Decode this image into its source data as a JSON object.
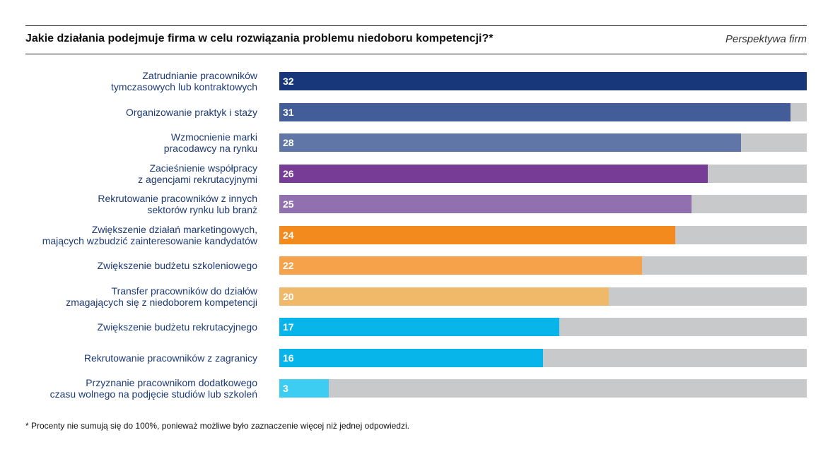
{
  "header": {
    "title": "Jakie działania podejmuje firma w celu rozwiązania problemu niedoboru kompetencji?*",
    "perspective": "Perspektywa firm"
  },
  "footnote": "* Procenty nie sumują się do 100%, ponieważ możliwe było zaznaczenie więcej niż jednej odpowiedzi.",
  "chart_data": {
    "type": "bar",
    "orientation": "horizontal",
    "title": "Jakie działania podejmuje firma w celu rozwiązania problemu niedoboru kompetencji?*",
    "xlim": [
      0,
      32
    ],
    "grid": false,
    "categories": [
      "Zatrudnianie pracowników\ntymczasowych lub kontraktowych",
      "Organizowanie praktyk i staży",
      "Wzmocnienie marki\npracodawcy na rynku",
      "Zacieśnienie współpracy\nz agencjami rekrutacyjnymi",
      "Rekrutowanie pracowników z innych\nsektorów rynku lub branż",
      "Zwiększenie działań marketingowych,\nmających wzbudzić zainteresowanie kandydatów",
      "Zwiększenie budżetu szkoleniowego",
      "Transfer pracowników do działów\nzmagających się z niedoborem kompetencji",
      "Zwiększenie budżetu rekrutacyjnego",
      "Rekrutowanie pracowników z zagranicy",
      "Przyznanie pracownikom dodatkowego\nczasu wolnego na podjęcie studiów lub szkoleń"
    ],
    "values": [
      32,
      31,
      28,
      26,
      25,
      24,
      22,
      20,
      17,
      16,
      3
    ],
    "colors": [
      "#17377a",
      "#435d98",
      "#5f76a6",
      "#773c96",
      "#9170b0",
      "#f28a1e",
      "#f5a24a",
      "#f0b969",
      "#07b5ea",
      "#07b5ea",
      "#3ecdf2"
    ],
    "track_color": "#c8c9cb"
  }
}
